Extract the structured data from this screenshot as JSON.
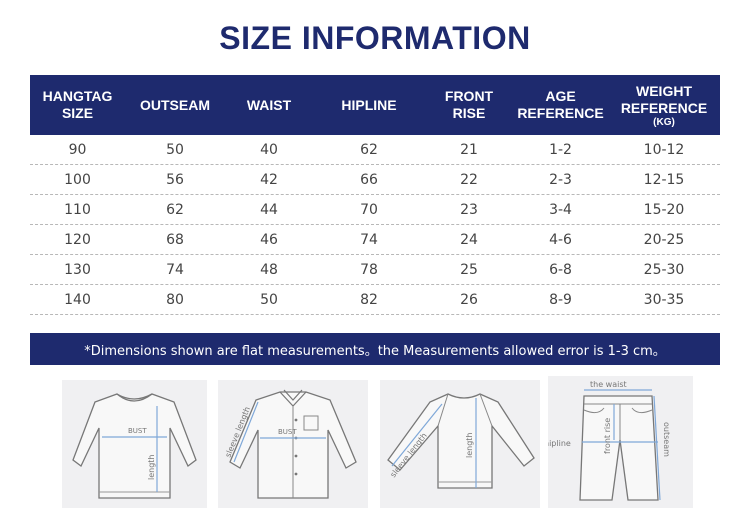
{
  "title": "SIZE INFORMATION",
  "table": {
    "headers": [
      {
        "line1": "HANGTAG",
        "line2": "SIZE",
        "unit": ""
      },
      {
        "line1": "OUTSEAM",
        "line2": "",
        "unit": ""
      },
      {
        "line1": "WAIST",
        "line2": "",
        "unit": ""
      },
      {
        "line1": "HIPLINE",
        "line2": "",
        "unit": ""
      },
      {
        "line1": "FRONT",
        "line2": "RISE",
        "unit": ""
      },
      {
        "line1": "AGE",
        "line2": "REFERENCE",
        "unit": ""
      },
      {
        "line1": "WEIGHT",
        "line2": "REFERENCE",
        "unit": "(KG)"
      }
    ],
    "rows": [
      [
        "90",
        "50",
        "40",
        "62",
        "21",
        "1-2",
        "10-12"
      ],
      [
        "100",
        "56",
        "42",
        "66",
        "22",
        "2-3",
        "12-15"
      ],
      [
        "110",
        "62",
        "44",
        "70",
        "23",
        "3-4",
        "15-20"
      ],
      [
        "120",
        "68",
        "46",
        "74",
        "24",
        "4-6",
        "20-25"
      ],
      [
        "130",
        "74",
        "48",
        "78",
        "25",
        "6-8",
        "25-30"
      ],
      [
        "140",
        "80",
        "50",
        "82",
        "26",
        "8-9",
        "30-35"
      ]
    ]
  },
  "note": "*Dimensions shown are flat measurements。the Measurements allowed error is 1-3 cm。",
  "diagrams": {
    "sweater": {
      "bust": "BUST",
      "length": "length"
    },
    "shirt": {
      "sleeve": "sleeve length",
      "bust": "BUST"
    },
    "raglan": {
      "sleeve": "sleeve length",
      "length": "length"
    },
    "pants": {
      "waist": "the waist",
      "hipline": "hipline",
      "front_rise": "front rise",
      "outseam": "outseam"
    }
  }
}
